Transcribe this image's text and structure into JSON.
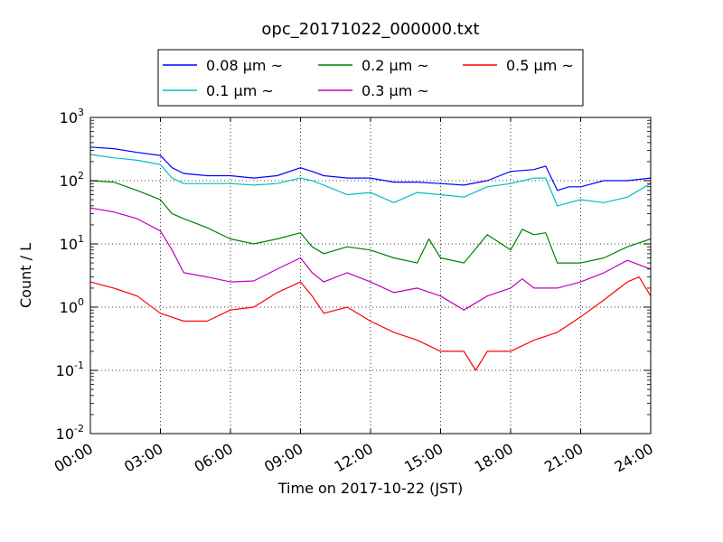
{
  "chart_data": {
    "type": "line",
    "title": "opc_20171022_000000.txt",
    "xlabel": "Time on 2017-10-22 (JST)",
    "ylabel": "Count / L",
    "x_unit": "hour",
    "xlim": [
      0,
      24
    ],
    "ylim": [
      0.01,
      1000
    ],
    "y_scale": "log",
    "grid": true,
    "legend_position": "top",
    "x_ticks": [
      {
        "value": 0,
        "label": "00:00"
      },
      {
        "value": 3,
        "label": "03:00"
      },
      {
        "value": 6,
        "label": "06:00"
      },
      {
        "value": 9,
        "label": "09:00"
      },
      {
        "value": 12,
        "label": "12:00"
      },
      {
        "value": 15,
        "label": "15:00"
      },
      {
        "value": 18,
        "label": "18:00"
      },
      {
        "value": 21,
        "label": "21:00"
      },
      {
        "value": 24,
        "label": "24:00"
      }
    ],
    "y_ticks": [
      {
        "value": 0.01,
        "base": "10",
        "exp": "-2"
      },
      {
        "value": 0.1,
        "base": "10",
        "exp": "-1"
      },
      {
        "value": 1,
        "base": "10",
        "exp": "0"
      },
      {
        "value": 10,
        "base": "10",
        "exp": "1"
      },
      {
        "value": 100,
        "base": "10",
        "exp": "2"
      },
      {
        "value": 1000,
        "base": "10",
        "exp": "3"
      }
    ],
    "series": [
      {
        "name": "0.08 μm ~",
        "color": "#0000ff",
        "points": [
          [
            0,
            340
          ],
          [
            1,
            320
          ],
          [
            2,
            280
          ],
          [
            3,
            250
          ],
          [
            3.5,
            160
          ],
          [
            4,
            130
          ],
          [
            5,
            120
          ],
          [
            6,
            120
          ],
          [
            7,
            110
          ],
          [
            8,
            120
          ],
          [
            9,
            160
          ],
          [
            9.5,
            140
          ],
          [
            10,
            120
          ],
          [
            11,
            110
          ],
          [
            12,
            110
          ],
          [
            13,
            95
          ],
          [
            14,
            95
          ],
          [
            15,
            90
          ],
          [
            16,
            85
          ],
          [
            17,
            100
          ],
          [
            18,
            140
          ],
          [
            19,
            150
          ],
          [
            19.5,
            170
          ],
          [
            20,
            70
          ],
          [
            20.5,
            80
          ],
          [
            21,
            80
          ],
          [
            22,
            100
          ],
          [
            23,
            100
          ],
          [
            24,
            110
          ]
        ]
      },
      {
        "name": "0.1 μm ~",
        "color": "#00bfbf",
        "points": [
          [
            0,
            260
          ],
          [
            1,
            230
          ],
          [
            2,
            210
          ],
          [
            3,
            180
          ],
          [
            3.5,
            110
          ],
          [
            4,
            90
          ],
          [
            5,
            90
          ],
          [
            6,
            90
          ],
          [
            7,
            85
          ],
          [
            8,
            90
          ],
          [
            9,
            110
          ],
          [
            9.5,
            100
          ],
          [
            10,
            85
          ],
          [
            11,
            60
          ],
          [
            12,
            65
          ],
          [
            13,
            45
          ],
          [
            14,
            65
          ],
          [
            15,
            60
          ],
          [
            16,
            55
          ],
          [
            17,
            80
          ],
          [
            18,
            90
          ],
          [
            19,
            110
          ],
          [
            19.5,
            110
          ],
          [
            20,
            40
          ],
          [
            20.5,
            45
          ],
          [
            21,
            50
          ],
          [
            22,
            45
          ],
          [
            23,
            55
          ],
          [
            24,
            90
          ]
        ]
      },
      {
        "name": "0.2 μm ~",
        "color": "#008000",
        "points": [
          [
            0,
            100
          ],
          [
            1,
            95
          ],
          [
            2,
            70
          ],
          [
            3,
            50
          ],
          [
            3.5,
            30
          ],
          [
            4,
            25
          ],
          [
            5,
            18
          ],
          [
            6,
            12
          ],
          [
            7,
            10
          ],
          [
            8,
            12
          ],
          [
            9,
            15
          ],
          [
            9.5,
            9
          ],
          [
            10,
            7
          ],
          [
            11,
            9
          ],
          [
            12,
            8
          ],
          [
            13,
            6
          ],
          [
            14,
            5
          ],
          [
            14.5,
            12
          ],
          [
            15,
            6
          ],
          [
            16,
            5
          ],
          [
            17,
            14
          ],
          [
            18,
            8
          ],
          [
            18.5,
            17
          ],
          [
            19,
            14
          ],
          [
            19.5,
            15
          ],
          [
            20,
            5
          ],
          [
            21,
            5
          ],
          [
            22,
            6
          ],
          [
            23,
            9
          ],
          [
            24,
            12
          ]
        ]
      },
      {
        "name": "0.3 μm ~",
        "color": "#bf00bf",
        "points": [
          [
            0,
            37
          ],
          [
            1,
            32
          ],
          [
            2,
            25
          ],
          [
            3,
            16
          ],
          [
            3.5,
            8
          ],
          [
            4,
            3.5
          ],
          [
            5,
            3
          ],
          [
            6,
            2.5
          ],
          [
            7,
            2.6
          ],
          [
            8,
            4
          ],
          [
            9,
            6
          ],
          [
            9.5,
            3.5
          ],
          [
            10,
            2.5
          ],
          [
            11,
            3.5
          ],
          [
            12,
            2.5
          ],
          [
            13,
            1.7
          ],
          [
            14,
            2
          ],
          [
            15,
            1.5
          ],
          [
            16,
            0.9
          ],
          [
            17,
            1.5
          ],
          [
            18,
            2
          ],
          [
            18.5,
            2.8
          ],
          [
            19,
            2
          ],
          [
            20,
            2
          ],
          [
            21,
            2.5
          ],
          [
            22,
            3.5
          ],
          [
            23,
            5.5
          ],
          [
            24,
            4
          ]
        ]
      },
      {
        "name": "0.5 μm ~",
        "color": "#ff0000",
        "points": [
          [
            0,
            2.5
          ],
          [
            1,
            2
          ],
          [
            2,
            1.5
          ],
          [
            3,
            0.8
          ],
          [
            4,
            0.6
          ],
          [
            5,
            0.6
          ],
          [
            6,
            0.9
          ],
          [
            7,
            1
          ],
          [
            8,
            1.7
          ],
          [
            9,
            2.5
          ],
          [
            9.5,
            1.5
          ],
          [
            10,
            0.8
          ],
          [
            11,
            1
          ],
          [
            12,
            0.6
          ],
          [
            13,
            0.4
          ],
          [
            14,
            0.3
          ],
          [
            15,
            0.2
          ],
          [
            16,
            0.2
          ],
          [
            16.5,
            0.1
          ],
          [
            17,
            0.2
          ],
          [
            18,
            0.2
          ],
          [
            19,
            0.3
          ],
          [
            20,
            0.4
          ],
          [
            21,
            0.7
          ],
          [
            22,
            1.3
          ],
          [
            23,
            2.5
          ],
          [
            23.5,
            3
          ],
          [
            24,
            1.5
          ]
        ]
      }
    ]
  }
}
